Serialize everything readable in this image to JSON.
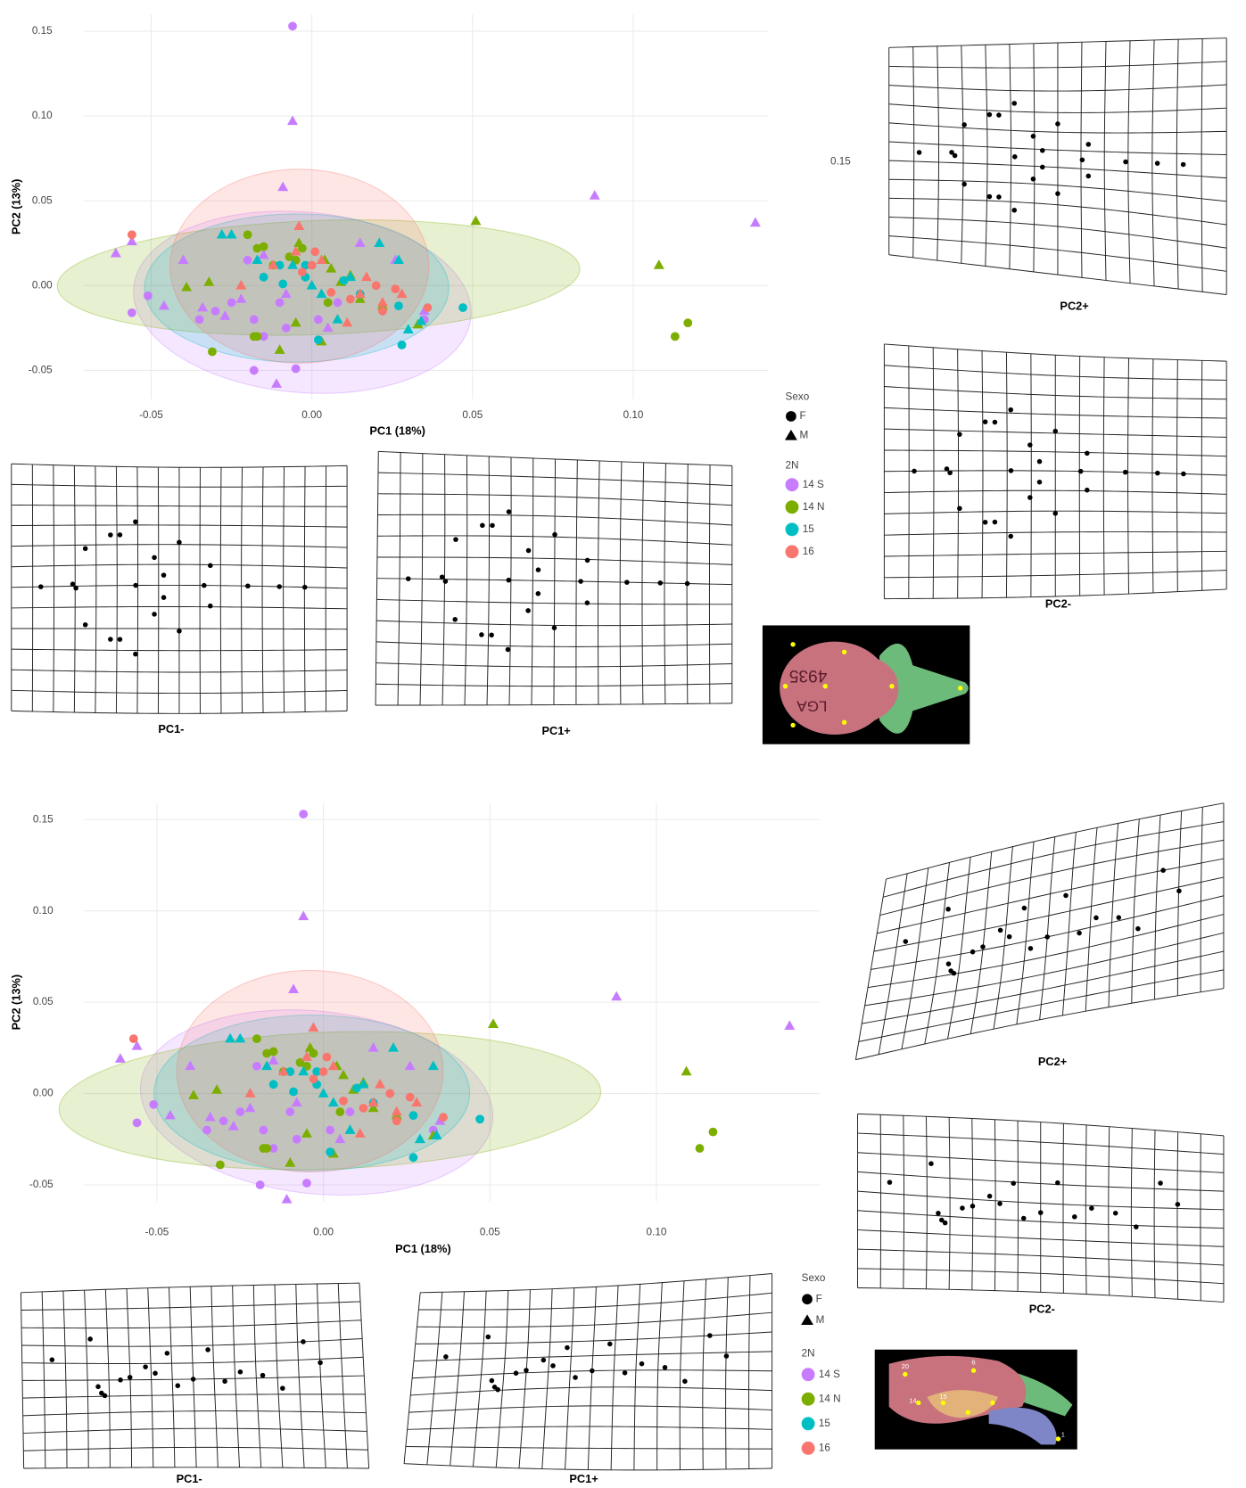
{
  "chart_data": [
    {
      "type": "scatter",
      "x_label": "PC1 (18%)",
      "y_label": "PC2 (13%)",
      "xlim": [
        -0.071,
        0.142
      ],
      "ylim": [
        -0.067,
        0.16
      ],
      "xticks": [
        -0.05,
        {
          "value": 0,
          "label": "0.00"
        },
        0.05,
        {
          "value": 0.1,
          "label": "0.10"
        }
      ],
      "yticks": [
        -0.05,
        {
          "value": 0,
          "label": "0.00"
        },
        0.05,
        {
          "value": 0.1,
          "label": "0.10"
        },
        0.15
      ],
      "grid": true,
      "sex_title": "Sexo",
      "group_title": "2N",
      "sexes": [
        {
          "name": "F",
          "shape": "circle"
        },
        {
          "name": "M",
          "shape": "triangle"
        }
      ],
      "groups": [
        {
          "name": "14 S",
          "color": "#c77cff",
          "series": [
            {
              "x": [
                -0.006,
                -0.056,
                -0.051,
                -0.035,
                -0.03,
                -0.025,
                -0.018,
                -0.02,
                -0.01,
                -0.015,
                -0.005,
                -0.018,
                0.002,
                0.008,
                0.035,
                -0.008
              ],
              "y": [
                0.153,
                -0.016,
                -0.006,
                -0.02,
                -0.015,
                -0.01,
                -0.02,
                0.015,
                -0.01,
                -0.03,
                -0.049,
                -0.05,
                -0.02,
                -0.01,
                -0.02,
                -0.025
              ]
            },
            {
              "x": [
                -0.006,
                -0.009,
                -0.061,
                -0.056,
                0.088,
                0.138,
                -0.046,
                -0.04,
                -0.034,
                -0.011,
                -0.027,
                -0.022,
                -0.015,
                -0.008,
                0.015,
                0.026,
                0.005,
                0.035
              ],
              "y": [
                0.097,
                0.058,
                0.019,
                0.026,
                0.053,
                0.037,
                -0.012,
                0.015,
                -0.013,
                -0.058,
                -0.018,
                -0.008,
                0.018,
                -0.005,
                0.025,
                0.015,
                -0.025,
                -0.015
              ]
            }
          ]
        },
        {
          "name": "14 N",
          "color": "#7cae00",
          "series": [
            {
              "x": [
                0.113,
                0.117,
                -0.031,
                -0.02,
                -0.017,
                -0.015,
                -0.012,
                -0.018,
                -0.007,
                -0.005,
                -0.003,
                0.005,
                -0.017
              ],
              "y": [
                -0.03,
                -0.022,
                -0.039,
                0.03,
                0.022,
                0.023,
                0.012,
                -0.03,
                0.017,
                0.015,
                0.022,
                -0.01,
                -0.03
              ]
            },
            {
              "x": [
                0.051,
                0.108,
                -0.039,
                -0.032,
                -0.01,
                -0.005,
                -0.004,
                0.004,
                0.006,
                0.009,
                0.012,
                0.015,
                0.022,
                0.033,
                0.003
              ],
              "y": [
                0.038,
                0.012,
                -0.001,
                0.002,
                -0.038,
                -0.022,
                0.025,
                0.015,
                0.01,
                0.002,
                0.006,
                -0.008,
                -0.012,
                -0.023,
                -0.033
              ]
            }
          ]
        },
        {
          "name": "15",
          "color": "#00bfc4",
          "series": [
            {
              "x": [
                -0.015,
                -0.01,
                -0.009,
                -0.002,
                0.01,
                -0.002,
                0.015,
                0.027,
                0.047,
                0.028,
                0.002
              ],
              "y": [
                0.005,
                0.012,
                0.001,
                0.012,
                0.003,
                0.005,
                -0.005,
                -0.012,
                -0.013,
                -0.035,
                -0.032
              ]
            },
            {
              "x": [
                -0.028,
                -0.025,
                -0.017,
                -0.006,
                0.0,
                0.003,
                0.012,
                0.021,
                0.027,
                0.03,
                0.008,
                0.034
              ],
              "y": [
                0.03,
                0.03,
                0.015,
                0.012,
                0.0,
                -0.005,
                0.005,
                0.025,
                0.015,
                -0.026,
                -0.02,
                -0.021
              ]
            }
          ]
        },
        {
          "name": "16",
          "color": "#f8766d",
          "series": [
            {
              "x": [
                -0.056,
                -0.003,
                0.0,
                0.006,
                0.012,
                0.02,
                0.026,
                0.036,
                0.022,
                0.001
              ],
              "y": [
                0.03,
                0.008,
                0.012,
                -0.004,
                -0.008,
                0.0,
                -0.002,
                -0.013,
                -0.015,
                0.02
              ]
            },
            {
              "x": [
                -0.022,
                -0.012,
                -0.004,
                -0.005,
                0.003,
                0.015,
                0.022,
                0.028,
                0.017,
                0.011
              ],
              "y": [
                0.0,
                0.012,
                0.035,
                0.02,
                0.015,
                -0.005,
                -0.01,
                -0.005,
                0.005,
                -0.022
              ]
            }
          ]
        }
      ]
    },
    {
      "type": "scatter",
      "x_label": "PC1 (18%)",
      "y_label": "PC2 (13%)",
      "xlim": [
        -0.072,
        0.149
      ],
      "ylim": [
        -0.059,
        0.159
      ],
      "xticks": [
        -0.05,
        {
          "value": 0,
          "label": "0.00"
        },
        0.05,
        {
          "value": 0.1,
          "label": "0.10"
        }
      ],
      "yticks": [
        -0.05,
        {
          "value": 0,
          "label": "0.00"
        },
        0.05,
        {
          "value": 0.1,
          "label": "0.10"
        },
        0.15
      ],
      "grid": true,
      "sex_title": "Sexo",
      "group_title": "2N",
      "sexes": [
        {
          "name": "F",
          "shape": "circle"
        },
        {
          "name": "M",
          "shape": "triangle"
        }
      ],
      "groups": [
        {
          "name": "14 S",
          "color": "#c77cff",
          "series": [
            {
              "x": [
                -0.006,
                -0.056,
                -0.051,
                -0.035,
                -0.03,
                -0.025,
                -0.018,
                -0.02,
                -0.01,
                -0.015,
                -0.005,
                -0.019,
                0.002,
                0.008,
                0.033,
                -0.008
              ],
              "y": [
                0.153,
                -0.016,
                -0.006,
                -0.02,
                -0.015,
                -0.01,
                -0.02,
                0.015,
                -0.01,
                -0.03,
                -0.049,
                -0.05,
                -0.02,
                -0.01,
                -0.02,
                -0.025
              ]
            },
            {
              "x": [
                -0.006,
                -0.009,
                -0.061,
                -0.056,
                0.088,
                0.14,
                -0.046,
                -0.04,
                -0.034,
                -0.011,
                -0.027,
                -0.022,
                -0.015,
                -0.008,
                0.015,
                0.026,
                0.005,
                0.035
              ],
              "y": [
                0.097,
                0.057,
                0.019,
                0.026,
                0.053,
                0.037,
                -0.012,
                0.015,
                -0.013,
                -0.058,
                -0.018,
                -0.008,
                0.018,
                -0.005,
                0.025,
                0.015,
                -0.025,
                -0.015
              ]
            }
          ]
        },
        {
          "name": "14 N",
          "color": "#7cae00",
          "series": [
            {
              "x": [
                0.113,
                0.117,
                -0.031,
                -0.02,
                -0.017,
                -0.015,
                -0.012,
                -0.018,
                -0.007,
                -0.005,
                -0.003,
                0.005,
                -0.017
              ],
              "y": [
                -0.03,
                -0.021,
                -0.039,
                0.03,
                0.022,
                0.023,
                0.012,
                -0.03,
                0.017,
                0.015,
                0.022,
                -0.01,
                -0.03
              ]
            },
            {
              "x": [
                0.051,
                0.109,
                -0.039,
                -0.032,
                -0.01,
                -0.005,
                -0.004,
                0.004,
                0.006,
                0.009,
                0.012,
                0.015,
                0.022,
                0.033,
                0.003
              ],
              "y": [
                0.038,
                0.012,
                -0.001,
                0.002,
                -0.038,
                -0.022,
                0.025,
                0.015,
                0.01,
                0.002,
                0.006,
                -0.008,
                -0.012,
                -0.023,
                -0.033
              ]
            }
          ]
        },
        {
          "name": "15",
          "color": "#00bfc4",
          "series": [
            {
              "x": [
                -0.015,
                -0.01,
                -0.009,
                -0.002,
                0.01,
                -0.002,
                0.015,
                0.027,
                0.047,
                0.027,
                0.002
              ],
              "y": [
                0.005,
                0.012,
                0.001,
                0.012,
                0.003,
                0.005,
                -0.005,
                -0.012,
                -0.014,
                -0.035,
                -0.032
              ]
            },
            {
              "x": [
                -0.028,
                -0.025,
                -0.017,
                -0.006,
                0.0,
                0.003,
                0.012,
                0.021,
                0.033,
                0.029,
                0.008,
                0.034
              ],
              "y": [
                0.03,
                0.03,
                0.015,
                0.012,
                0.0,
                -0.005,
                0.005,
                0.025,
                0.015,
                -0.025,
                -0.02,
                -0.023
              ]
            }
          ]
        },
        {
          "name": "16",
          "color": "#f8766d",
          "series": [
            {
              "x": [
                -0.057,
                -0.003,
                0.0,
                0.006,
                0.012,
                0.02,
                0.026,
                0.036,
                0.022,
                0.001
              ],
              "y": [
                0.03,
                0.008,
                0.012,
                -0.004,
                -0.008,
                0.0,
                -0.002,
                -0.013,
                -0.015,
                0.02
              ]
            },
            {
              "x": [
                -0.022,
                -0.012,
                -0.003,
                -0.005,
                0.003,
                0.015,
                0.022,
                0.028,
                0.017,
                0.011
              ],
              "y": [
                0.0,
                0.012,
                0.036,
                0.02,
                0.015,
                -0.005,
                -0.01,
                -0.005,
                0.005,
                -0.022
              ]
            }
          ]
        }
      ]
    }
  ],
  "deformation_grids": [
    {
      "labels": [
        "PC2+",
        "PC2-",
        "PC1-",
        "PC1+"
      ],
      "stray_label": "0.15"
    },
    {
      "labels": [
        "PC2+",
        "PC2-",
        "PC1-",
        "PC1+"
      ],
      "skull_labels": [
        "20",
        "6",
        "14",
        "15",
        "1"
      ]
    }
  ]
}
